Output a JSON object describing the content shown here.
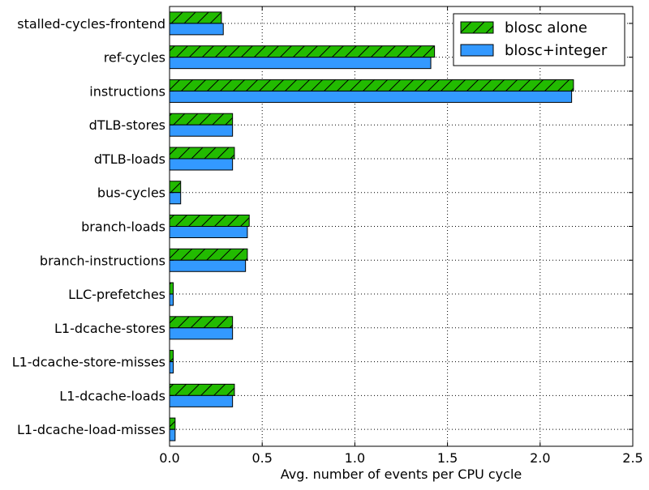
{
  "chart_data": {
    "type": "bar",
    "orientation": "horizontal",
    "title": "",
    "xlabel": "Avg. number of events per CPU cycle",
    "ylabel": "",
    "xlim": [
      0,
      2.5
    ],
    "xticks": [
      "0.0",
      "0.5",
      "1.0",
      "1.5",
      "2.0",
      "2.5"
    ],
    "grid": "dotted",
    "legend_position": "top-right",
    "categories": [
      "stalled-cycles-frontend",
      "ref-cycles",
      "instructions",
      "dTLB-stores",
      "dTLB-loads",
      "bus-cycles",
      "branch-loads",
      "branch-instructions",
      "LLC-prefetches",
      "L1-dcache-stores",
      "L1-dcache-store-misses",
      "L1-dcache-loads",
      "L1-dcache-load-misses"
    ],
    "series": [
      {
        "name": "blosc alone",
        "color": "#22bb00",
        "hatch": "diagonal",
        "values": [
          0.28,
          1.43,
          2.18,
          0.34,
          0.35,
          0.06,
          0.43,
          0.42,
          0.02,
          0.34,
          0.02,
          0.35,
          0.03
        ]
      },
      {
        "name": "blosc+integer",
        "color": "#3399ff",
        "hatch": "none",
        "values": [
          0.29,
          1.41,
          2.17,
          0.34,
          0.34,
          0.06,
          0.42,
          0.41,
          0.02,
          0.34,
          0.02,
          0.34,
          0.03
        ]
      }
    ]
  }
}
